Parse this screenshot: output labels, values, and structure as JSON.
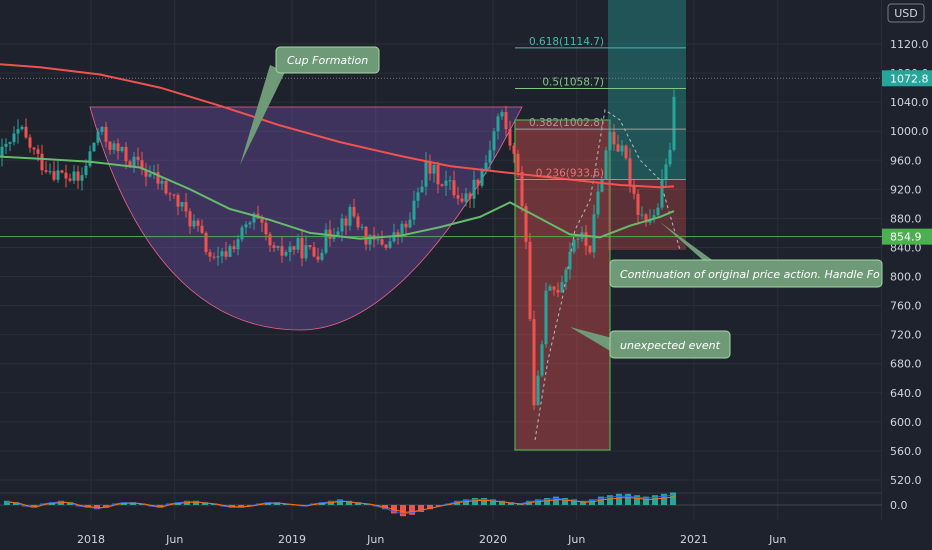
{
  "chart_data": {
    "type": "candlestick",
    "currency": "USD",
    "y_axis": {
      "min": 500,
      "max": 1140,
      "ticks": [
        1120.0,
        1080.0,
        1040.0,
        1000.0,
        960.0,
        920.0,
        880.0,
        840.0,
        800.0,
        760.0,
        720.0,
        680.0,
        640.0,
        600.0,
        560.0,
        520.0
      ]
    },
    "x_axis": {
      "ticks": [
        {
          "label": "2018",
          "date": "2018-01"
        },
        {
          "label": "Jun",
          "date": "2018-06"
        },
        {
          "label": "2019",
          "date": "2019-01"
        },
        {
          "label": "Jun",
          "date": "2019-06"
        },
        {
          "label": "2020",
          "date": "2020-01"
        },
        {
          "label": "Jun",
          "date": "2020-06"
        },
        {
          "label": "2021",
          "date": "2021-01"
        },
        {
          "label": "Jun",
          "date": "2021-06"
        }
      ]
    },
    "price_labels": [
      {
        "value": 1072.8,
        "text": "1072.8",
        "color": "#26a69a"
      },
      {
        "value": 854.9,
        "text": "854.9",
        "color": "#4caf50"
      }
    ],
    "horizontal_line": 854.9,
    "fibonacci": [
      {
        "ratio": 0.618,
        "price": 1114.7,
        "text": "0.618(1114.7)",
        "color": "#4db6ac"
      },
      {
        "ratio": 0.5,
        "price": 1058.7,
        "text": "0.5(1058.7)",
        "color": "#81c784"
      },
      {
        "ratio": 0.382,
        "price": 1002.8,
        "text": "0.382(1002.8)",
        "color": "#9e9e9e"
      },
      {
        "ratio": 0.236,
        "price": 933.6,
        "text": "0.236(933.6)",
        "color": "#e57373"
      }
    ],
    "moving_averages": [
      {
        "color": "#ef5350",
        "points": [
          [
            0,
            1092
          ],
          [
            40,
            1088
          ],
          [
            100,
            1078
          ],
          [
            160,
            1060
          ],
          [
            220,
            1035
          ],
          [
            280,
            1008
          ],
          [
            340,
            985
          ],
          [
            400,
            966
          ],
          [
            450,
            952
          ],
          [
            500,
            944
          ],
          [
            540,
            938
          ],
          [
            580,
            932
          ],
          [
            620,
            926
          ],
          [
            660,
            923
          ],
          [
            674,
            924
          ]
        ]
      },
      {
        "color": "#66bb6a",
        "points": [
          [
            0,
            965
          ],
          [
            40,
            962
          ],
          [
            90,
            958
          ],
          [
            140,
            950
          ],
          [
            190,
            920
          ],
          [
            230,
            893
          ],
          [
            270,
            878
          ],
          [
            310,
            860
          ],
          [
            360,
            852
          ],
          [
            400,
            856
          ],
          [
            440,
            868
          ],
          [
            480,
            882
          ],
          [
            510,
            902
          ],
          [
            540,
            880
          ],
          [
            570,
            858
          ],
          [
            600,
            854
          ],
          [
            630,
            870
          ],
          [
            660,
            882
          ],
          [
            674,
            890
          ]
        ]
      }
    ],
    "ohlc_anchors": [
      [
        0,
        965
      ],
      [
        20,
        1000
      ],
      [
        40,
        958
      ],
      [
        60,
        940
      ],
      [
        80,
        930
      ],
      [
        98,
        1000
      ],
      [
        115,
        975
      ],
      [
        135,
        955
      ],
      [
        155,
        935
      ],
      [
        175,
        905
      ],
      [
        195,
        870
      ],
      [
        215,
        815
      ],
      [
        235,
        848
      ],
      [
        255,
        880
      ],
      [
        275,
        828
      ],
      [
        295,
        842
      ],
      [
        315,
        830
      ],
      [
        335,
        870
      ],
      [
        352,
        888
      ],
      [
        370,
        845
      ],
      [
        390,
        848
      ],
      [
        410,
        875
      ],
      [
        425,
        950
      ],
      [
        445,
        930
      ],
      [
        465,
        905
      ],
      [
        485,
        955
      ],
      [
        500,
        1030
      ],
      [
        515,
        960
      ],
      [
        525,
        880
      ],
      [
        535,
        600
      ],
      [
        545,
        770
      ],
      [
        560,
        790
      ],
      [
        575,
        860
      ],
      [
        590,
        840
      ],
      [
        600,
        930
      ],
      [
        610,
        1000
      ],
      [
        625,
        960
      ],
      [
        640,
        885
      ],
      [
        655,
        880
      ],
      [
        668,
        960
      ],
      [
        672,
        1000
      ],
      [
        676,
        1072.8
      ]
    ],
    "annotations": [
      {
        "id": "cup",
        "text": "Cup Formation"
      },
      {
        "id": "handle",
        "text": "Continuation of original price action. Handle Fo"
      },
      {
        "id": "event",
        "text": "unexpected event"
      }
    ],
    "indicator": {
      "name": "oscillator",
      "zero_label": "0.0",
      "bars": [
        3,
        2,
        -1,
        -2,
        1,
        2,
        3,
        2,
        -1,
        -2,
        -3,
        -2,
        1,
        2,
        2,
        1,
        -1,
        -2,
        1,
        2,
        3,
        3,
        2,
        1,
        -1,
        -2,
        -2,
        -1,
        1,
        2,
        2,
        1,
        0,
        -1,
        1,
        2,
        3,
        4,
        3,
        2,
        1,
        -1,
        -3,
        -6,
        -8,
        -7,
        -5,
        -3,
        -1,
        1,
        3,
        4,
        5,
        5,
        4,
        3,
        2,
        1,
        3,
        4,
        5,
        6,
        5,
        4,
        3,
        4,
        6,
        7,
        8,
        8,
        7,
        6,
        7,
        8,
        9
      ]
    }
  }
}
